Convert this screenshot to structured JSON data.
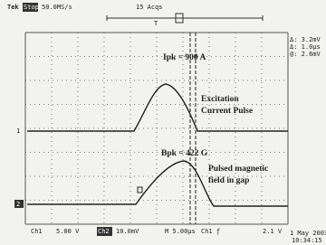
{
  "header": {
    "brand": "Tek",
    "state": "Stop",
    "rate": "50.0MS/s",
    "acquisitions": "15 Acqs"
  },
  "readout": [
    "Δ: 3.2mV",
    "Δ: 1.0μs",
    "@: 2.6mV"
  ],
  "annotations": {
    "peak_current": "Ipk = 900 A",
    "current_label": [
      "Excitation",
      "Current Pulse"
    ],
    "peak_field": "Bpk = 422 G",
    "field_label": [
      "Pulsed magnetic",
      "field in gap"
    ]
  },
  "channel_markers": [
    "1",
    "2"
  ],
  "footer": {
    "ch1": "Ch1",
    "ch1_scale": "5.00 V",
    "ch2": "Ch2",
    "ch2_scale": "10.0mV",
    "timebase": "M 5.00μs",
    "trigger": "Ch1 ƒ",
    "trigger_level": "2.1 V",
    "date": "1 May 2003",
    "time": "10:34:15"
  }
}
